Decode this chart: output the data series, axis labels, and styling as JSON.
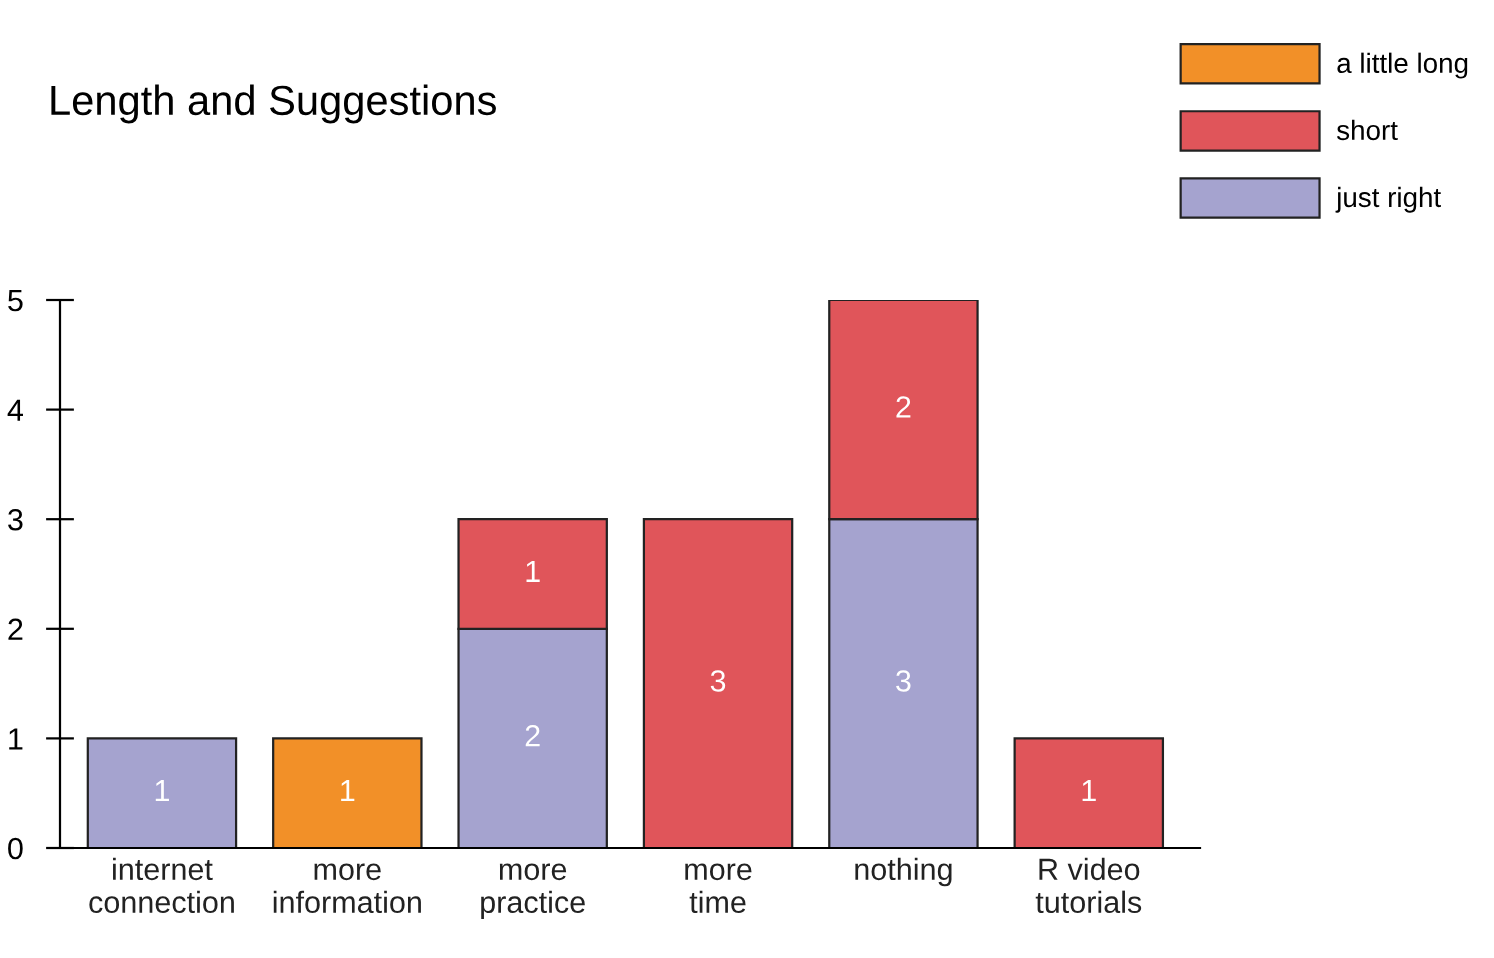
{
  "chart_data": {
    "type": "bar",
    "title": "Length and Suggestions",
    "stacked": true,
    "data_labels": true,
    "legend": "top right",
    "grid": false,
    "categories": [
      "internet\nconnection",
      "more\ninformation",
      "more\npractice",
      "more\ntime",
      "nothing",
      "R video\ntutorials"
    ],
    "ylim": [
      0,
      5
    ],
    "yticks": [
      0,
      1,
      2,
      3,
      4,
      5
    ],
    "series": [
      {
        "name": "just right",
        "color": "#a5a3cf",
        "values": [
          1,
          null,
          2,
          null,
          3,
          null
        ]
      },
      {
        "name": "short",
        "color": "#e0555a",
        "values": [
          null,
          null,
          1,
          3,
          2,
          1
        ]
      },
      {
        "name": "a little long",
        "color": "#f29028",
        "values": [
          null,
          1,
          null,
          null,
          null,
          null
        ]
      }
    ]
  }
}
